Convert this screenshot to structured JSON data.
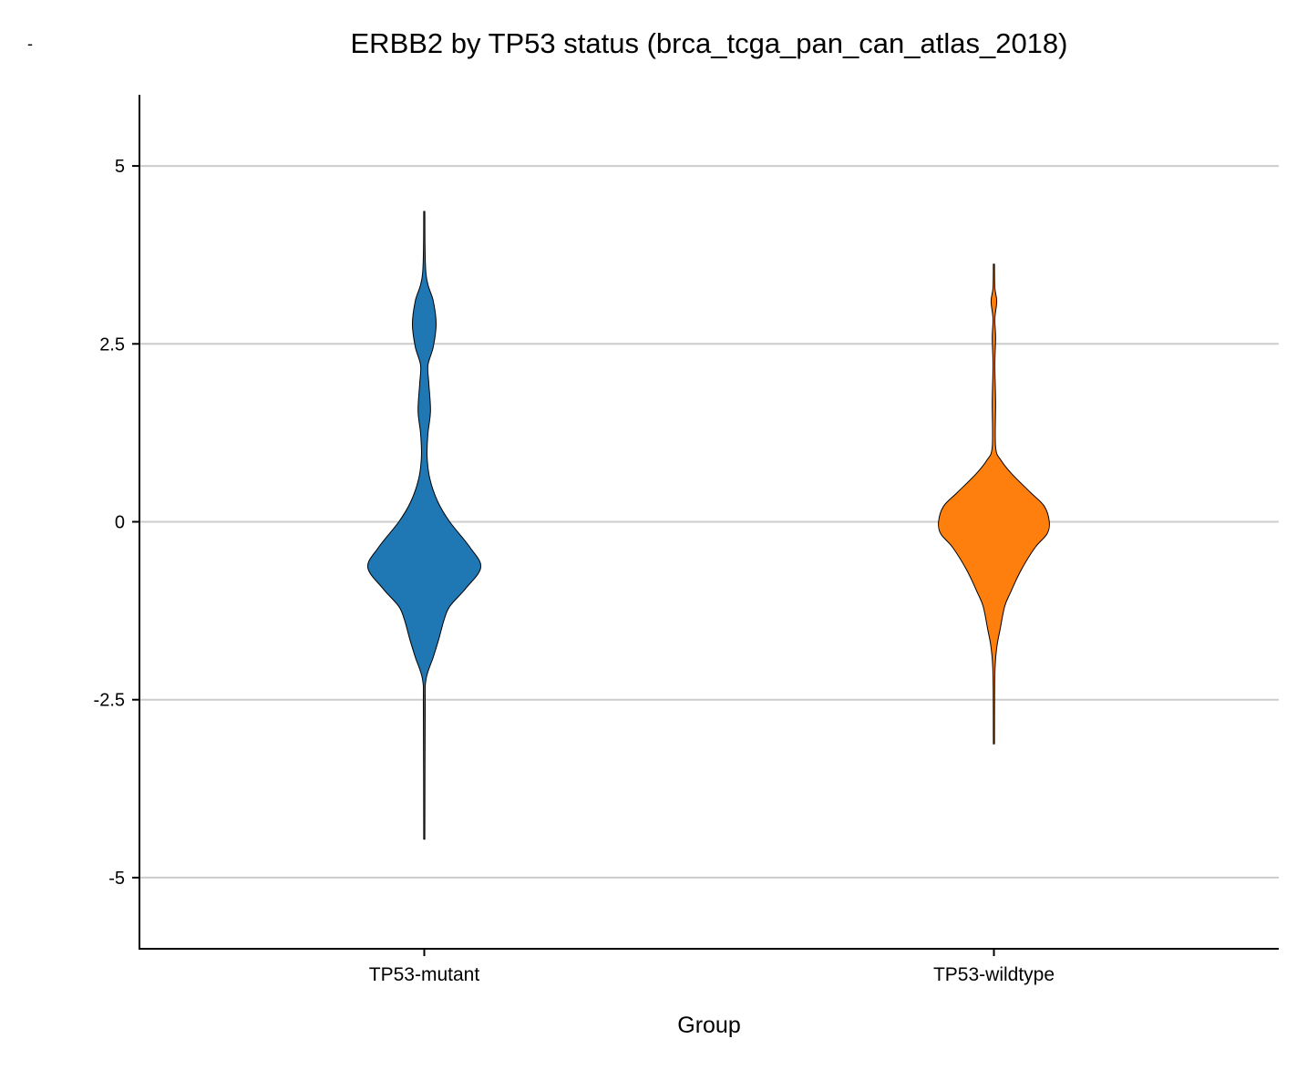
{
  "corner_mark": "-",
  "chart_data": {
    "type": "violin",
    "title": "ERBB2 by TP53 status (brca_tcga_pan_can_atlas_2018)",
    "xlabel": "Group",
    "ylabel": "",
    "ylim": [
      -6,
      6
    ],
    "yticks": [
      5,
      2.5,
      0,
      -2.5,
      -5
    ],
    "ytick_labels": [
      "5",
      "2.5",
      "0",
      "-2.5",
      "-5"
    ],
    "grid": "horizontal",
    "categories": [
      "TP53-mutant",
      "TP53-wildtype"
    ],
    "series": [
      {
        "category": "TP53-mutant",
        "color": "#1f77b4",
        "range": [
          -4.46,
          4.36
        ],
        "density_profile": [
          [
            4.36,
            0
          ],
          [
            3.49,
            0.03
          ],
          [
            3.1,
            0.16
          ],
          [
            2.78,
            0.21
          ],
          [
            2.46,
            0.16
          ],
          [
            2.2,
            0.065
          ],
          [
            1.95,
            0.08
          ],
          [
            1.56,
            0.11
          ],
          [
            1.24,
            0.065
          ],
          [
            0.92,
            0.05
          ],
          [
            0.6,
            0.1
          ],
          [
            0.28,
            0.24
          ],
          [
            0,
            0.45
          ],
          [
            -0.36,
            0.81
          ],
          [
            -0.64,
            1.0
          ],
          [
            -0.94,
            0.73
          ],
          [
            -1.19,
            0.45
          ],
          [
            -1.38,
            0.35
          ],
          [
            -1.64,
            0.26
          ],
          [
            -1.9,
            0.16
          ],
          [
            -2.22,
            0.03
          ],
          [
            -2.67,
            0.016
          ],
          [
            -4.46,
            0
          ]
        ]
      },
      {
        "category": "TP53-wildtype",
        "color": "#ff7f0e",
        "range": [
          -3.12,
          3.62
        ],
        "density_profile": [
          [
            3.62,
            0
          ],
          [
            3.29,
            0.016
          ],
          [
            3.1,
            0.05
          ],
          [
            2.85,
            0.016
          ],
          [
            2.59,
            0.03
          ],
          [
            2.2,
            0.016
          ],
          [
            1.69,
            0.03
          ],
          [
            1.05,
            0.03
          ],
          [
            0.86,
            0.13
          ],
          [
            0.67,
            0.32
          ],
          [
            0.41,
            0.65
          ],
          [
            0.22,
            0.89
          ],
          [
            0,
            0.98
          ],
          [
            -0.17,
            0.94
          ],
          [
            -0.36,
            0.73
          ],
          [
            -0.68,
            0.48
          ],
          [
            -1.0,
            0.29
          ],
          [
            -1.19,
            0.19
          ],
          [
            -1.51,
            0.11
          ],
          [
            -1.77,
            0.05
          ],
          [
            -2.15,
            0.016
          ],
          [
            -3.12,
            0
          ]
        ]
      }
    ]
  }
}
